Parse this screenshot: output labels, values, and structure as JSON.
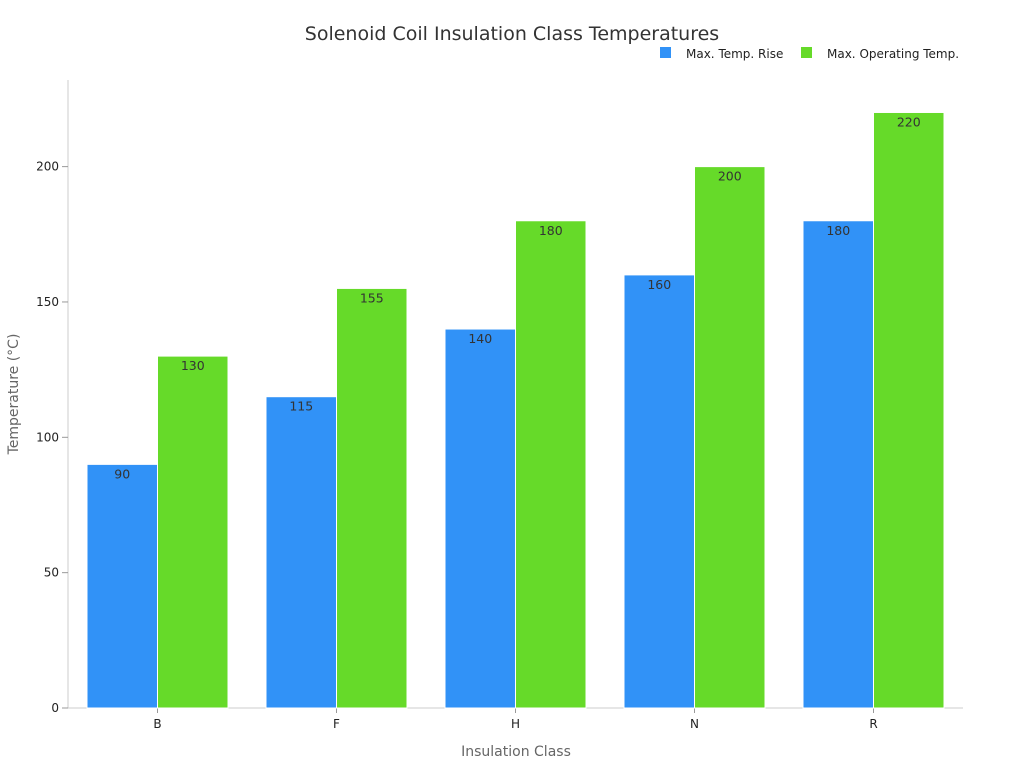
{
  "chart_data": {
    "type": "bar",
    "title": "Solenoid Coil Insulation Class Temperatures",
    "xlabel": "Insulation Class",
    "ylabel": "Temperature (°C)",
    "categories": [
      "B",
      "F",
      "H",
      "N",
      "R"
    ],
    "series": [
      {
        "name": "Max. Temp. Rise",
        "values": [
          90,
          115,
          140,
          160,
          180
        ],
        "color": "#3192f7"
      },
      {
        "name": "Max. Operating Temp.",
        "values": [
          130,
          155,
          180,
          200,
          220
        ],
        "color": "#66da29"
      }
    ],
    "ylim": [
      0,
      232
    ],
    "yticks": [
      0,
      50,
      100,
      150,
      200
    ],
    "grid": false,
    "legend_position": "top-right",
    "data_labels": true
  }
}
